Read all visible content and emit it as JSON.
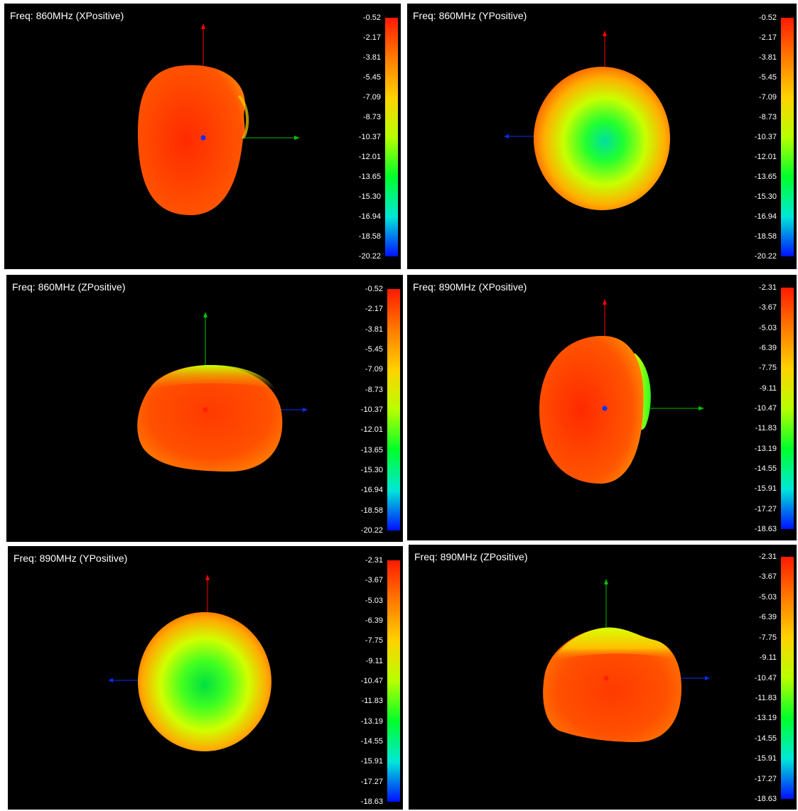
{
  "colorbar_gradient": [
    "#ff1a00",
    "#ff7a00",
    "#ffd200",
    "#b8ff00",
    "#00ff2a",
    "#00e8d8",
    "#0010ff"
  ],
  "axis_colors": {
    "red_axis": "#ff0000",
    "green_axis": "#00c000",
    "blue_axis": "#0030ff"
  },
  "panels": [
    {
      "title": "Freq: 860MHz (XPositive)",
      "view": "XPositive",
      "scale": [
        "-0.52",
        "-2.17",
        "-3.81",
        "-5.45",
        "-7.09",
        "-8.73",
        "-10.37",
        "-12.01",
        "-13.65",
        "-15.30",
        "-16.94",
        "-18.58",
        "-20.22"
      ]
    },
    {
      "title": "Freq: 860MHz (YPositive)",
      "view": "YPositive",
      "scale": [
        "-0.52",
        "-2.17",
        "-3.81",
        "-5.45",
        "-7.09",
        "-8.73",
        "-10.37",
        "-12.01",
        "-13.65",
        "-15.30",
        "-16.94",
        "-18.58",
        "-20.22"
      ]
    },
    {
      "title": "Freq: 860MHz (ZPositive)",
      "view": "ZPositive",
      "scale": [
        "-0.52",
        "-2.17",
        "-3.81",
        "-5.45",
        "-7.09",
        "-8.73",
        "-10.37",
        "-12.01",
        "-13.65",
        "-15.30",
        "-16.94",
        "-18.58",
        "-20.22"
      ]
    },
    {
      "title": "Freq: 890MHz (XPositive)",
      "view": "XPositive",
      "scale": [
        "-2.31",
        "-3.67",
        "-5.03",
        "-6.39",
        "-7.75",
        "-9.11",
        "-10.47",
        "-11.83",
        "-13.19",
        "-14.55",
        "-15.91",
        "-17.27",
        "-18.63"
      ]
    },
    {
      "title": "Freq: 890MHz (YPositive)",
      "view": "YPositive",
      "scale": [
        "-2.31",
        "-3.67",
        "-5.03",
        "-6.39",
        "-7.75",
        "-9.11",
        "-10.47",
        "-11.83",
        "-13.19",
        "-14.55",
        "-15.91",
        "-17.27",
        "-18.63"
      ]
    },
    {
      "title": "Freq: 890MHz (ZPositive)",
      "view": "ZPositive",
      "scale": [
        "-2.31",
        "-3.67",
        "-5.03",
        "-6.39",
        "-7.75",
        "-9.11",
        "-10.47",
        "-11.83",
        "-13.19",
        "-14.55",
        "-15.91",
        "-17.27",
        "-18.63"
      ]
    }
  ]
}
